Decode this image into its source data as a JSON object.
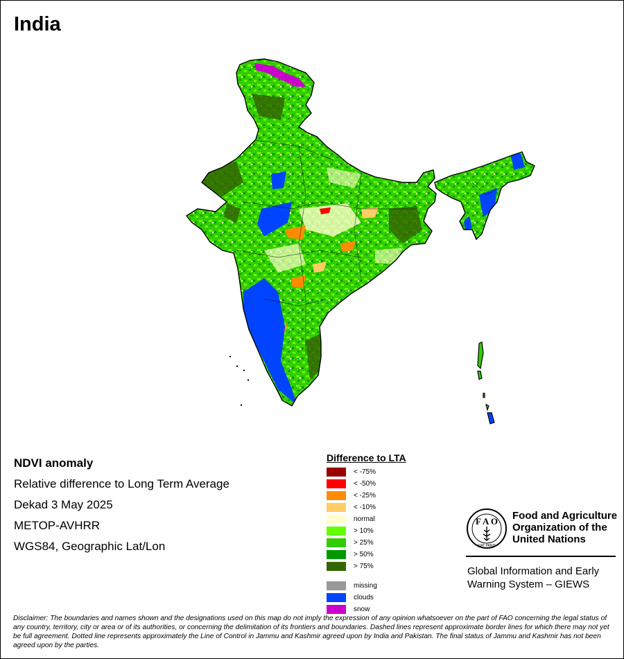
{
  "title": "India",
  "info": {
    "heading": "NDVI anomaly",
    "line1": "Relative difference to Long Term Average",
    "line2": "Dekad 3 May 2025",
    "line3": "METOP-AVHRR",
    "line4": "WGS84, Geographic Lat/Lon"
  },
  "legend": {
    "title": "Difference to LTA",
    "items": [
      {
        "label": "< -75%",
        "color": "#990000"
      },
      {
        "label": "< -50%",
        "color": "#ff0000"
      },
      {
        "label": "< -25%",
        "color": "#ff8c00"
      },
      {
        "label": "< -10%",
        "color": "#ffcc66"
      },
      {
        "label": "normal",
        "color": "#ffffcc"
      },
      {
        "label": "> 10%",
        "color": "#66ff00"
      },
      {
        "label": "> 25%",
        "color": "#33cc00"
      },
      {
        "label": "> 50%",
        "color": "#009900"
      },
      {
        "label": "> 75%",
        "color": "#336600"
      }
    ],
    "extra": [
      {
        "label": "missing",
        "color": "#999999"
      },
      {
        "label": "clouds",
        "color": "#0044ff"
      },
      {
        "label": "snow",
        "color": "#cc00cc"
      }
    ]
  },
  "fao": {
    "org_line1": "Food and Agriculture",
    "org_line2": "Organization of the",
    "org_line3": "United Nations",
    "logo_text": "FIAT PANIS",
    "giews_line1": "Global Information and Early",
    "giews_line2": "Warning System – GIEWS"
  },
  "disclaimer": "Disclaimer: The boundaries and names shown and the designations used on this map do not imply the expression of any opinion whatsoever on the part of FAO concerning the legal status of any country, territory, city or area or of its authorities, or concerning the delimitation of its frontiers and boundaries. Dashed lines represent approximate border lines for which there may not yet be full agreement. Dotted line represents approximately the Line of Control in Jammu and Kashmir agreed upon by India and Pakistan. The final status of Jammu and Kashmir has not been agreed upon by the parties."
}
